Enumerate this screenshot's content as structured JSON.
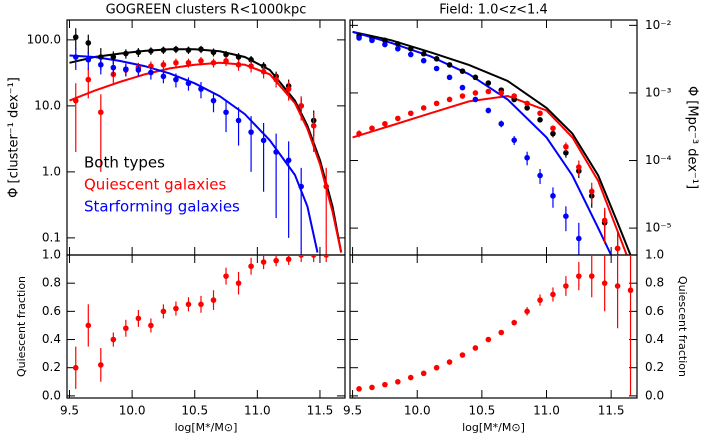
{
  "chart_data": [
    {
      "type": "scatter",
      "title": "GOGREEN clusters R<1000kpc",
      "ylabel": "Φ [cluster⁻¹ dex⁻¹]",
      "log_y": true,
      "y_axis_side": "left",
      "xlim": [
        9.48,
        11.7
      ],
      "ylim": [
        0.055,
        200
      ],
      "yticks": [
        0.1,
        {
          "value": 1,
          "label": "1.0"
        },
        {
          "value": 10,
          "label": "10.0"
        },
        {
          "value": 100,
          "label": "100.0"
        }
      ],
      "x": [
        9.55,
        9.65,
        9.75,
        9.85,
        9.95,
        10.05,
        10.15,
        10.25,
        10.35,
        10.45,
        10.55,
        10.65,
        10.75,
        10.85,
        10.95,
        11.05,
        11.15,
        11.25,
        11.35,
        11.45,
        11.55
      ],
      "series": [
        {
          "name": "Both types",
          "color": "#000000",
          "values": [
            110,
            90,
            55,
            55,
            62,
            65,
            68,
            70,
            72,
            70,
            72,
            65,
            60,
            55,
            50,
            40,
            28,
            20,
            10,
            6,
            null
          ],
          "errors": [
            40,
            30,
            20,
            12,
            10,
            10,
            9,
            9,
            9,
            9,
            9,
            9,
            8,
            8,
            7,
            6,
            5,
            5,
            3,
            2.5,
            null
          ]
        },
        {
          "name": "Quiescent galaxies",
          "color": "#ff0000",
          "values": [
            12,
            25,
            8,
            30,
            35,
            38,
            40,
            42,
            45,
            45,
            48,
            45,
            48,
            42,
            40,
            33,
            25,
            18,
            10,
            5,
            0.6
          ],
          "errors": [
            10,
            12,
            7,
            8,
            7,
            7,
            7,
            7,
            7,
            7,
            7,
            7,
            8,
            8,
            8,
            7,
            6,
            6,
            4,
            3,
            0.55
          ]
        },
        {
          "name": "Starforming galaxies",
          "color": "#0000ff",
          "values": [
            55,
            50,
            42,
            38,
            36,
            35,
            32,
            28,
            25,
            22,
            18,
            12,
            8,
            6,
            4,
            3,
            2,
            1.5,
            0.6,
            null,
            null
          ],
          "errors": [
            20,
            15,
            12,
            10,
            8,
            7,
            7,
            6,
            6,
            5,
            5,
            4,
            4,
            3.5,
            3,
            2.5,
            1.8,
            1.4,
            0.55,
            null,
            null
          ]
        }
      ],
      "fits": [
        {
          "color": "#000000",
          "x": [
            9.5,
            9.7,
            9.9,
            10.1,
            10.3,
            10.5,
            10.7,
            10.9,
            11.1,
            11.3,
            11.4,
            11.5,
            11.6,
            11.67
          ],
          "values": [
            45,
            55,
            62,
            68,
            72,
            72,
            67,
            55,
            35,
            12,
            5,
            1.5,
            0.3,
            0.06
          ]
        },
        {
          "color": "#ff0000",
          "x": [
            9.5,
            9.7,
            9.9,
            10.1,
            10.3,
            10.5,
            10.7,
            10.9,
            11.1,
            11.3,
            11.4,
            11.5,
            11.6,
            11.67
          ],
          "values": [
            12,
            17,
            23,
            30,
            37,
            42,
            45,
            42,
            30,
            11,
            4.5,
            1.3,
            0.25,
            0.06
          ]
        },
        {
          "color": "#0000ff",
          "x": [
            9.5,
            9.7,
            9.9,
            10.1,
            10.3,
            10.5,
            10.7,
            10.9,
            11.1,
            11.3,
            11.4,
            11.48
          ],
          "values": [
            58,
            55,
            48,
            40,
            31,
            22,
            14,
            7.5,
            3,
            0.9,
            0.3,
            0.06
          ]
        }
      ]
    },
    {
      "type": "scatter",
      "title": "Field:    1.0<z<1.4",
      "ylabel": "Φ [Mpc⁻³ dex⁻¹]",
      "log_y": true,
      "y_axis_side": "right",
      "xlim": [
        9.48,
        11.7
      ],
      "ylim": [
        4e-06,
        0.012
      ],
      "yticks": [
        {
          "value": 1e-05,
          "label": "10⁻⁵"
        },
        {
          "value": 0.0001,
          "label": "10⁻⁴"
        },
        {
          "value": 0.001,
          "label": "10⁻³"
        },
        {
          "value": 0.01,
          "label": "10⁻²"
        }
      ],
      "x": [
        9.55,
        9.65,
        9.75,
        9.85,
        9.95,
        10.05,
        10.15,
        10.25,
        10.35,
        10.45,
        10.55,
        10.65,
        10.75,
        10.85,
        10.95,
        11.05,
        11.15,
        11.25,
        11.35,
        11.45,
        11.55
      ],
      "series": [
        {
          "color": "#000000",
          "values": [
            0.007,
            0.0065,
            0.006,
            0.0053,
            0.0045,
            0.0038,
            0.0032,
            0.0026,
            0.0021,
            0.0017,
            0.0014,
            0.0011,
            0.0008,
            0.0006,
            0.0004,
            0.00025,
            0.00013,
            7e-05,
            3e-05,
            1.2e-05,
            5e-06
          ],
          "errors": [
            0.0003,
            0.0003,
            0.00025,
            0.0002,
            0.0002,
            0.00015,
            0.00013,
            0.0001,
            9e-05,
            8e-05,
            7e-05,
            6e-05,
            5e-05,
            4e-05,
            3e-05,
            3e-05,
            2e-05,
            1.5e-05,
            1e-05,
            6e-06,
            4e-06
          ]
        },
        {
          "color": "#ff0000",
          "values": [
            0.00025,
            0.0003,
            0.00035,
            0.00042,
            0.0005,
            0.0006,
            0.0007,
            0.0008,
            0.0009,
            0.001,
            0.00105,
            0.001,
            0.0009,
            0.0007,
            0.0005,
            0.0003,
            0.00016,
            8e-05,
            3.5e-05,
            1.3e-05,
            5e-06
          ],
          "errors": [
            3e-05,
            3e-05,
            3e-05,
            3e-05,
            3e-05,
            3e-05,
            3e-05,
            3e-05,
            4e-05,
            4e-05,
            4e-05,
            4e-05,
            4e-05,
            4e-05,
            3e-05,
            3e-05,
            2.5e-05,
            2e-05,
            1.2e-05,
            7e-06,
            4e-06
          ]
        },
        {
          "color": "#0000ff",
          "values": [
            0.0065,
            0.006,
            0.0052,
            0.0045,
            0.0037,
            0.003,
            0.0023,
            0.0017,
            0.0012,
            0.0008,
            0.00055,
            0.00035,
            0.0002,
            0.00011,
            6e-05,
            3e-05,
            1.5e-05,
            7e-06,
            null,
            null,
            null
          ],
          "errors": [
            0.0003,
            0.0003,
            0.00025,
            0.0002,
            0.00018,
            0.00015,
            0.00012,
            0.0001,
            8e-05,
            6e-05,
            5e-05,
            4e-05,
            3e-05,
            2.5e-05,
            1.5e-05,
            1e-05,
            6e-06,
            5e-06,
            null,
            null,
            null
          ]
        }
      ],
      "fits": [
        {
          "color": "#000000",
          "x": [
            9.5,
            9.8,
            10.1,
            10.4,
            10.7,
            11.0,
            11.2,
            11.4,
            11.55,
            11.65
          ],
          "values": [
            0.008,
            0.006,
            0.004,
            0.0026,
            0.0015,
            0.0006,
            0.00025,
            6e-05,
            1.2e-05,
            4e-06
          ]
        },
        {
          "color": "#ff0000",
          "x": [
            9.5,
            9.8,
            10.1,
            10.4,
            10.7,
            11.0,
            11.2,
            11.4,
            11.55,
            11.62
          ],
          "values": [
            0.00022,
            0.00033,
            0.0005,
            0.00075,
            0.0009,
            0.00055,
            0.00022,
            5e-05,
            9e-06,
            4e-06
          ]
        },
        {
          "color": "#0000ff",
          "x": [
            9.5,
            9.8,
            10.1,
            10.4,
            10.7,
            11.0,
            11.2,
            11.4,
            11.5
          ],
          "values": [
            0.008,
            0.0055,
            0.0035,
            0.0019,
            0.0008,
            0.00022,
            6e-05,
            1e-05,
            4e-06
          ]
        }
      ]
    },
    {
      "type": "scatter",
      "ylabel": "Quiescent fraction",
      "xlabel": "log[M*/M⊙]",
      "log_y": false,
      "y_axis_side": "left",
      "xlim": [
        9.48,
        11.7
      ],
      "ylim": [
        -0.015,
        1.0
      ],
      "xticks": [
        9.5,
        {
          "value": 10,
          "label": "10.0"
        },
        10.5,
        {
          "value": 11,
          "label": "11.0"
        },
        11.5
      ],
      "yticks": [
        {
          "value": 0,
          "label": "0.0"
        },
        0.2,
        0.4,
        0.6,
        0.8,
        {
          "value": 1,
          "label": "1.0"
        }
      ],
      "x": [
        9.55,
        9.65,
        9.75,
        9.85,
        9.95,
        10.05,
        10.15,
        10.25,
        10.35,
        10.45,
        10.55,
        10.65,
        10.75,
        10.85,
        10.95,
        11.05,
        11.15,
        11.25,
        11.35,
        11.45,
        11.55
      ],
      "series": [
        {
          "color": "#ff0000",
          "values": [
            0.2,
            0.5,
            0.22,
            0.4,
            0.48,
            0.55,
            0.5,
            0.6,
            0.62,
            0.65,
            0.65,
            0.68,
            0.85,
            0.8,
            0.92,
            0.95,
            0.96,
            0.97,
            1.0,
            1.0,
            1.0
          ],
          "errors": [
            0.15,
            0.15,
            0.12,
            0.05,
            0.06,
            0.06,
            0.05,
            0.05,
            0.05,
            0.05,
            0.06,
            0.07,
            0.06,
            0.08,
            0.06,
            0.05,
            0.04,
            0.04,
            0.05,
            0.05,
            0.05
          ]
        }
      ]
    },
    {
      "type": "scatter",
      "ylabel": "Quiescent fraction",
      "xlabel": "log[M*/M⊙]",
      "log_y": false,
      "y_axis_side": "right",
      "xlim": [
        9.48,
        11.7
      ],
      "ylim": [
        -0.015,
        1.0
      ],
      "xticks": [
        9.5,
        {
          "value": 10,
          "label": "10.0"
        },
        10.5,
        {
          "value": 11,
          "label": "11.0"
        },
        11.5
      ],
      "yticks": [
        {
          "value": 0,
          "label": "0.0"
        },
        0.2,
        0.4,
        0.6,
        0.8,
        {
          "value": 1,
          "label": "1.0"
        }
      ],
      "x": [
        9.55,
        9.65,
        9.75,
        9.85,
        9.95,
        10.05,
        10.15,
        10.25,
        10.35,
        10.45,
        10.55,
        10.65,
        10.75,
        10.85,
        10.95,
        11.05,
        11.15,
        11.25,
        11.35,
        11.45,
        11.55,
        11.65
      ],
      "series": [
        {
          "color": "#ff0000",
          "values": [
            0.05,
            0.06,
            0.08,
            0.1,
            0.13,
            0.16,
            0.2,
            0.24,
            0.29,
            0.34,
            0.4,
            0.45,
            0.52,
            0.6,
            0.68,
            0.72,
            0.78,
            0.85,
            0.85,
            0.8,
            0.78,
            0.75
          ],
          "errors": [
            0.01,
            0.01,
            0.01,
            0.01,
            0.01,
            0.01,
            0.01,
            0.01,
            0.01,
            0.01,
            0.01,
            0.015,
            0.02,
            0.03,
            0.04,
            0.05,
            0.07,
            0.1,
            0.15,
            0.2,
            0.3,
            0.75
          ]
        }
      ]
    }
  ]
}
